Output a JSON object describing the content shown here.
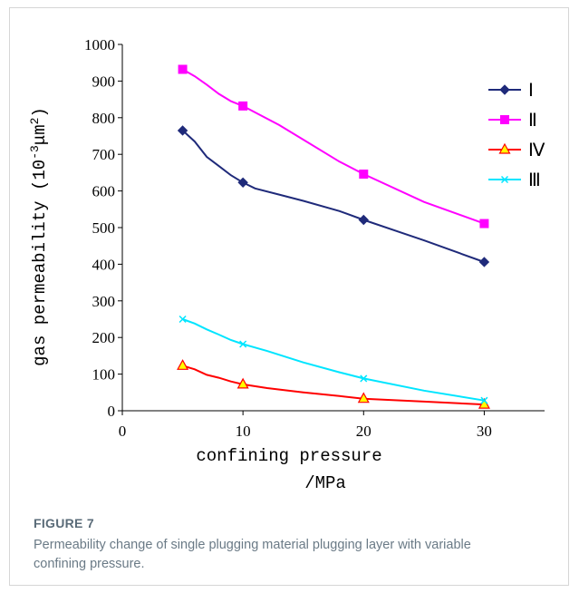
{
  "figure": {
    "label": "FIGURE 7",
    "caption": "Permeability change of single plugging material plugging layer with variable confining pressure."
  },
  "chart_data": {
    "type": "line",
    "xlabel_line1": "confining pressure",
    "xlabel_line2": "/MPa",
    "ylabel": "gas permeability (10",
    "ylabel_exp1": "-3",
    "ylabel_mid": "μm",
    "ylabel_exp2": "2",
    "ylabel_end": ")",
    "xlim": [
      0,
      35
    ],
    "ylim": [
      0,
      1000
    ],
    "xticks": [
      "0",
      "10",
      "20",
      "30"
    ],
    "xtick_values": [
      0,
      10,
      20,
      30
    ],
    "yticks": [
      "0",
      "100",
      "200",
      "300",
      "400",
      "500",
      "600",
      "700",
      "800",
      "900",
      "1000"
    ],
    "ytick_values": [
      0,
      100,
      200,
      300,
      400,
      500,
      600,
      700,
      800,
      900,
      1000
    ],
    "grid": false,
    "legend_position": "top-right",
    "series": [
      {
        "name": "Ⅰ",
        "color": "#1f2a7a",
        "marker": "diamond",
        "points": [
          [
            5,
            765
          ],
          [
            10,
            623
          ],
          [
            20,
            521
          ],
          [
            30,
            406
          ]
        ],
        "curve": [
          [
            5,
            765
          ],
          [
            6,
            735
          ],
          [
            7,
            693
          ],
          [
            8,
            668
          ],
          [
            9,
            643
          ],
          [
            10,
            623
          ],
          [
            11,
            607
          ],
          [
            13,
            590
          ],
          [
            15,
            573
          ],
          [
            18,
            545
          ],
          [
            20,
            521
          ],
          [
            25,
            465
          ],
          [
            30,
            406
          ]
        ]
      },
      {
        "name": "Ⅱ",
        "color": "#ff00ff",
        "marker": "square",
        "points": [
          [
            5,
            932
          ],
          [
            10,
            832
          ],
          [
            20,
            646
          ],
          [
            30,
            511
          ]
        ],
        "curve": [
          [
            5,
            932
          ],
          [
            6,
            913
          ],
          [
            7,
            890
          ],
          [
            8,
            865
          ],
          [
            9,
            845
          ],
          [
            10,
            832
          ],
          [
            13,
            780
          ],
          [
            15,
            740
          ],
          [
            18,
            680
          ],
          [
            20,
            646
          ],
          [
            25,
            570
          ],
          [
            30,
            511
          ]
        ]
      },
      {
        "name": "Ⅳ",
        "color": "#ff0000",
        "marker": "triangle",
        "marker_fill": "#ffff00",
        "points": [
          [
            5,
            123
          ],
          [
            10,
            72
          ],
          [
            20,
            33
          ],
          [
            30,
            17
          ]
        ],
        "curve": [
          [
            5,
            123
          ],
          [
            6,
            113
          ],
          [
            7,
            98
          ],
          [
            8,
            90
          ],
          [
            9,
            80
          ],
          [
            10,
            72
          ],
          [
            12,
            62
          ],
          [
            15,
            50
          ],
          [
            18,
            40
          ],
          [
            20,
            33
          ],
          [
            25,
            25
          ],
          [
            30,
            17
          ]
        ]
      },
      {
        "name": "Ⅲ",
        "color": "#00e5ff",
        "marker": "x",
        "points": [
          [
            5,
            250
          ],
          [
            10,
            182
          ],
          [
            20,
            88
          ],
          [
            30,
            28
          ]
        ],
        "curve": [
          [
            5,
            250
          ],
          [
            6,
            238
          ],
          [
            7,
            222
          ],
          [
            8,
            208
          ],
          [
            9,
            193
          ],
          [
            10,
            182
          ],
          [
            12,
            163
          ],
          [
            15,
            132
          ],
          [
            18,
            105
          ],
          [
            20,
            88
          ],
          [
            25,
            55
          ],
          [
            30,
            28
          ]
        ]
      }
    ]
  }
}
